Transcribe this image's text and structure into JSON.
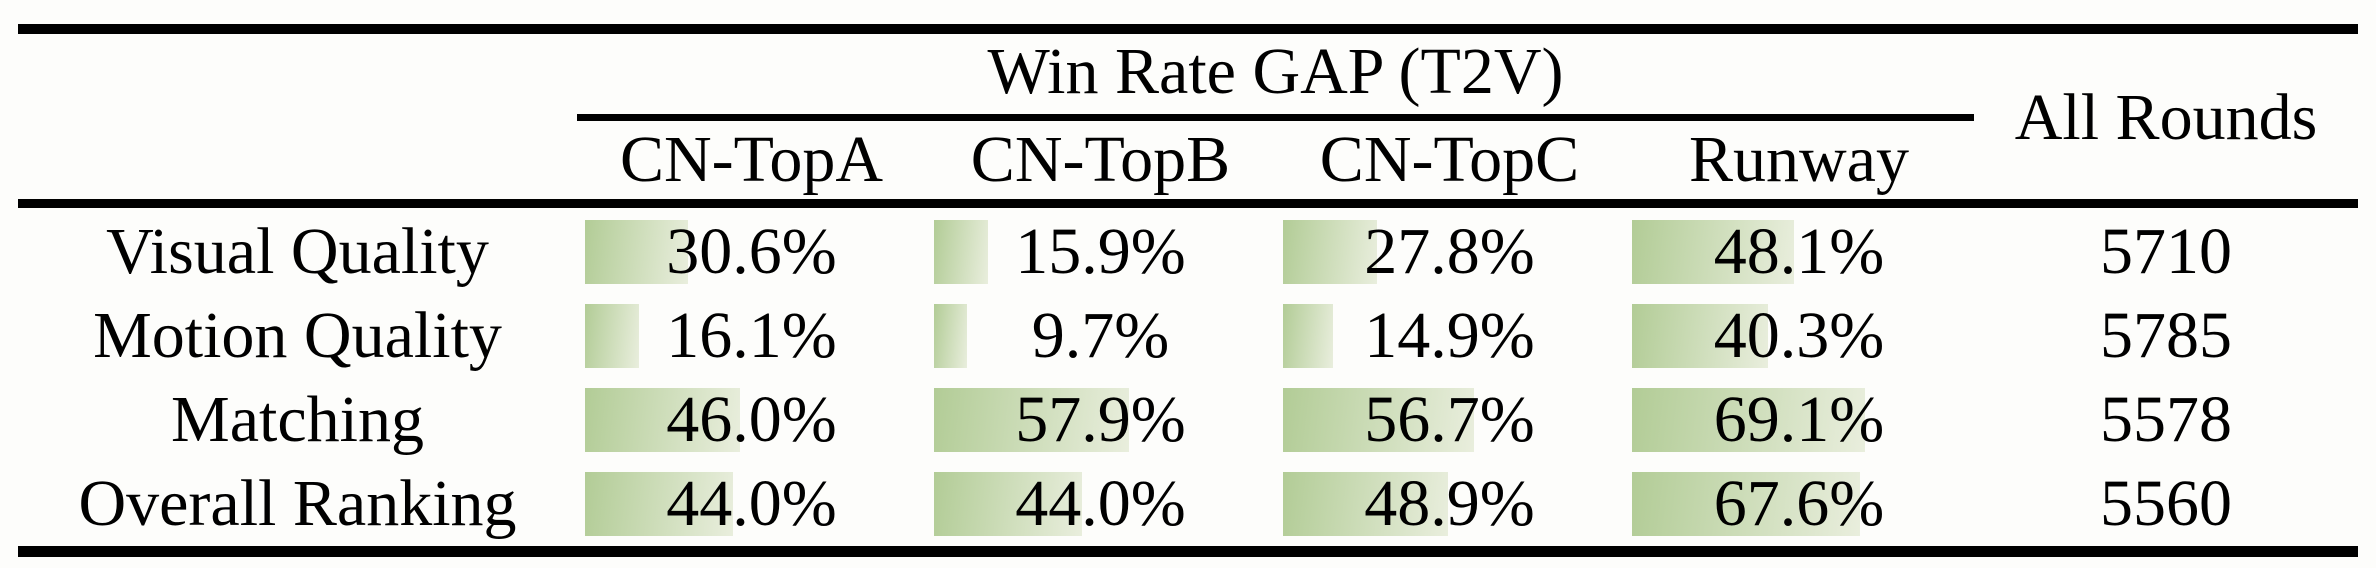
{
  "page": {
    "background": "#fdfdfb",
    "description": "Academic paper results table with proportional green win-rate bars"
  },
  "table": {
    "group_header": "Win Rate GAP (T2V)",
    "all_rounds_header": "All Rounds",
    "model_columns": [
      "CN-TopA",
      "CN-TopB",
      "CN-TopC",
      "Runway"
    ],
    "rows": [
      {
        "label": "Visual Quality",
        "values": [
          30.6,
          15.9,
          27.8,
          48.1
        ],
        "display": [
          "30.6%",
          "15.9%",
          "27.8%",
          "48.1%"
        ],
        "all_rounds": "5710"
      },
      {
        "label": "Motion Quality",
        "values": [
          16.1,
          9.7,
          14.9,
          40.3
        ],
        "display": [
          "16.1%",
          "9.7%",
          "14.9%",
          "40.3%"
        ],
        "all_rounds": "5785"
      },
      {
        "label": "Matching",
        "values": [
          46.0,
          57.9,
          56.7,
          69.1
        ],
        "display": [
          "46.0%",
          "57.9%",
          "56.7%",
          "69.1%"
        ],
        "all_rounds": "5578"
      },
      {
        "label": "Overall Ranking",
        "values": [
          44.0,
          44.0,
          48.9,
          67.6
        ],
        "display": [
          "44.0%",
          "44.0%",
          "48.9%",
          "67.6%"
        ],
        "all_rounds": "5560"
      }
    ],
    "colors": {
      "bar_gradient_start": "#b2cc96",
      "bar_gradient_end": "#e9eedd",
      "rule": "#000000",
      "text": "#000000"
    }
  },
  "chart_data": {
    "type": "table",
    "title": "Win Rate GAP (T2V)",
    "columns": [
      "CN-TopA",
      "CN-TopB",
      "CN-TopC",
      "Runway",
      "All Rounds"
    ],
    "row_labels": [
      "Visual Quality",
      "Motion Quality",
      "Matching",
      "Overall Ranking"
    ],
    "series": [
      {
        "name": "CN-TopA",
        "values": [
          30.6,
          16.1,
          46.0,
          44.0
        ]
      },
      {
        "name": "CN-TopB",
        "values": [
          15.9,
          9.7,
          57.9,
          44.0
        ]
      },
      {
        "name": "CN-TopC",
        "values": [
          27.8,
          14.9,
          56.7,
          48.9
        ]
      },
      {
        "name": "Runway",
        "values": [
          48.1,
          40.3,
          69.1,
          67.6
        ]
      }
    ],
    "all_rounds": [
      5710,
      5785,
      5578,
      5560
    ],
    "value_unit": "%",
    "layout_hints": "in-cell horizontal bars anchored left, bar length proportional to percent (100% = full cell width), green-to-white left-to-right gradient"
  }
}
